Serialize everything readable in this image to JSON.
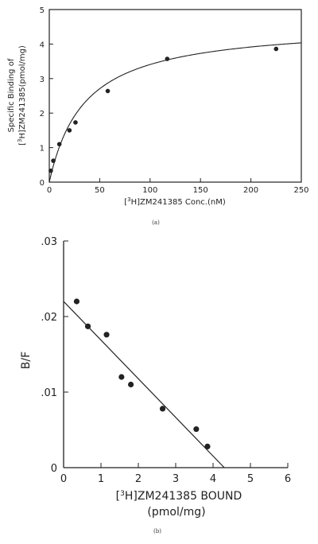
{
  "chart_data": [
    {
      "type": "scatter",
      "caption": "(a)",
      "xlabel": {
        "pre": "[",
        "sup": "3",
        "post": "H]ZM241385 Conc.(nM)"
      },
      "ylabel_line1": "Specific Binding of",
      "ylabel_line2": {
        "pre": "[",
        "sup": "3",
        "post": "H]ZM241385(pmol/mg)"
      },
      "xlim": [
        0,
        250
      ],
      "ylim": [
        0,
        5
      ],
      "xticks": [
        0,
        50,
        100,
        150,
        200,
        250
      ],
      "yticks": [
        0,
        1,
        2,
        3,
        4,
        5
      ],
      "xtick_labels": [
        "0",
        "50",
        "100",
        "150",
        "200",
        "250"
      ],
      "ytick_labels": [
        "0",
        "1",
        "2",
        "3",
        "4",
        "5"
      ],
      "points": {
        "x": [
          1.5,
          4,
          10,
          20,
          26,
          58,
          117,
          225
        ],
        "y": [
          0.33,
          0.62,
          1.1,
          1.5,
          1.73,
          2.64,
          3.57,
          3.86
        ]
      },
      "fit": {
        "model": "saturation",
        "Bmax": 4.6,
        "Kd": 35
      },
      "grid": false
    },
    {
      "type": "scatter",
      "caption": "(b)",
      "xlabel": {
        "pre": "[",
        "sup": "3",
        "post": "H]ZM241385 BOUND"
      },
      "xlabel_units": "(pmol/mg)",
      "ylabel": "B/F",
      "xlim": [
        0,
        6
      ],
      "ylim": [
        0,
        0.03
      ],
      "xticks": [
        0,
        1,
        2,
        3,
        4,
        5,
        6
      ],
      "yticks": [
        0,
        0.01,
        0.02,
        0.03
      ],
      "xtick_labels": [
        "0",
        "1",
        "2",
        "3",
        "4",
        "5",
        "6"
      ],
      "ytick_labels": [
        "0",
        ".01",
        ".02",
        ".03"
      ],
      "points": {
        "x": [
          0.35,
          0.65,
          1.15,
          1.55,
          1.8,
          2.65,
          3.55,
          3.85
        ],
        "y": [
          0.022,
          0.0187,
          0.0176,
          0.012,
          0.011,
          0.0078,
          0.0051,
          0.0028
        ]
      },
      "fit": {
        "model": "linear",
        "x": [
          0,
          4.3
        ],
        "y": [
          0.022,
          0
        ]
      },
      "grid": false
    }
  ]
}
